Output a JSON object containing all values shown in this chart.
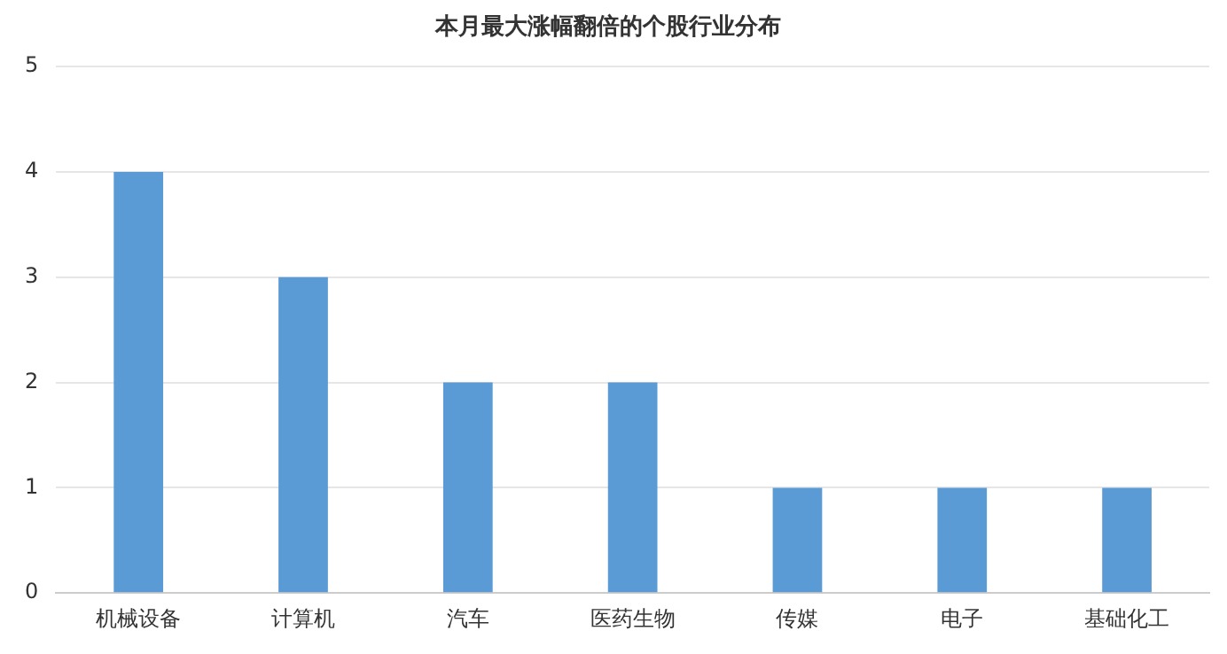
{
  "chart_data": {
    "type": "bar",
    "title": "本月最大涨幅翻倍的个股行业分布",
    "categories": [
      "机械设备",
      "计算机",
      "汽车",
      "医药生物",
      "传媒",
      "电子",
      "基础化工"
    ],
    "values": [
      4,
      3,
      2,
      2,
      1,
      1,
      1
    ],
    "color": "#5b9bd5",
    "ylim": [
      0,
      5
    ],
    "yticks": [
      0,
      1,
      2,
      3,
      4,
      5
    ],
    "grid": "y",
    "legend": false
  }
}
